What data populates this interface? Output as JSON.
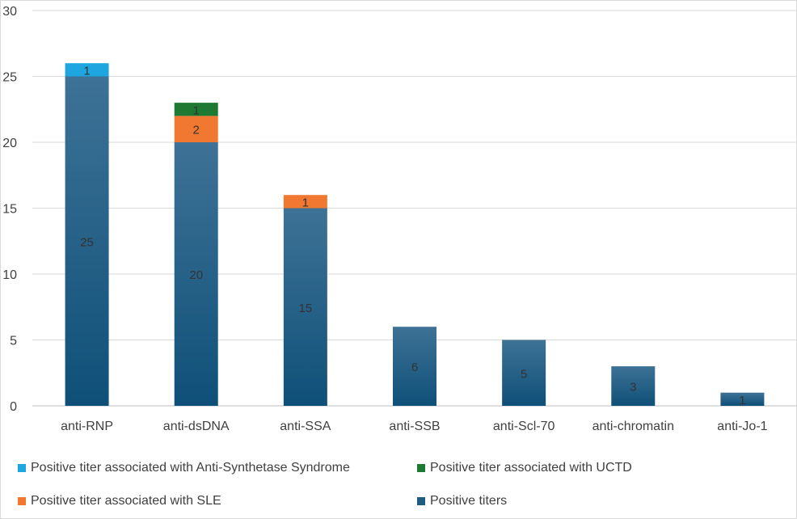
{
  "chart_data": {
    "type": "bar",
    "stacked": true,
    "categories": [
      "anti-RNP",
      "anti-dsDNA",
      "anti-SSA",
      "anti-SSB",
      "anti-Scl-70",
      "anti-chromatin",
      "anti-Jo-1"
    ],
    "series": [
      {
        "name": "Positive titers",
        "color": "#1f5c82",
        "values": [
          25,
          20,
          15,
          6,
          5,
          3,
          1
        ]
      },
      {
        "name": "Positive titer associated  with SLE",
        "color": "#f07830",
        "values": [
          0,
          2,
          1,
          0,
          0,
          0,
          0
        ]
      },
      {
        "name": "Positive titer associated  with UCTD",
        "color": "#1e7a33",
        "values": [
          0,
          1,
          0,
          0,
          0,
          0,
          0
        ]
      },
      {
        "name": "Positive titer associated with Anti-Synthetase Syndrome",
        "color": "#1ea6e0",
        "values": [
          1,
          0,
          0,
          0,
          0,
          0,
          0
        ]
      }
    ],
    "ylim": [
      0,
      30
    ],
    "yticks": [
      0,
      5,
      10,
      15,
      20,
      25,
      30
    ],
    "grid": true,
    "legend_position": "bottom"
  },
  "legend": {
    "items": [
      {
        "label": "Positive titer associated with Anti-Synthetase Syndrome",
        "color": "#1ea6e0"
      },
      {
        "label": "Positive titer associated  with UCTD",
        "color": "#1e7a33"
      },
      {
        "label": "Positive titer associated  with SLE",
        "color": "#f07830"
      },
      {
        "label": "Positive titers",
        "color": "#1f5c82"
      }
    ]
  }
}
